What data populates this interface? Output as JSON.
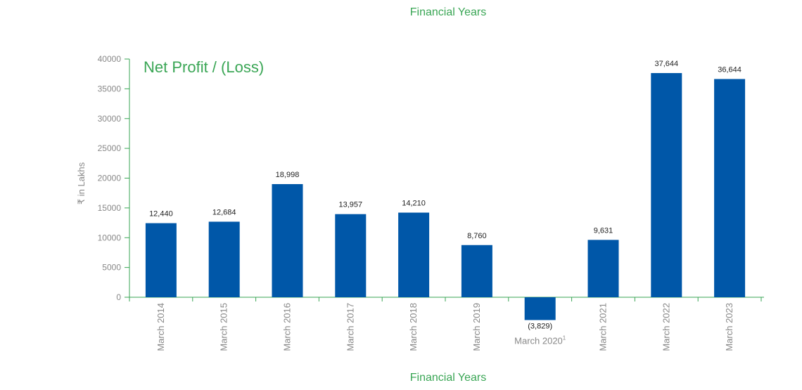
{
  "colors": {
    "bar": "#0057a8",
    "axis": "#3aa655",
    "accent_text": "#3aa655",
    "tick_text": "#888888",
    "label_text": "#222222"
  },
  "chart_data": {
    "type": "bar",
    "title": "Net Profit / (Loss)",
    "top_label": "Financial Years",
    "xlabel": "Financial Years",
    "ylabel": "₹ in Lakhs",
    "ylim": [
      -5000,
      40000
    ],
    "yticks": [
      0,
      5000,
      10000,
      15000,
      20000,
      25000,
      30000,
      35000,
      40000
    ],
    "categories": [
      "March 2014",
      "March 2015",
      "March 2016",
      "March 2017",
      "March 2018",
      "March 2019",
      "March 2020",
      "March 2021",
      "March 2022",
      "March 2023"
    ],
    "footnote_marks": [
      "",
      "",
      "",
      "",
      "",
      "",
      "1",
      "",
      "",
      ""
    ],
    "values": [
      12440,
      12684,
      18998,
      13957,
      14210,
      8760,
      -3829,
      9631,
      37644,
      36644
    ],
    "value_labels": [
      "12,440",
      "12,684",
      "18,998",
      "13,957",
      "14,210",
      "8,760",
      "(3,829)",
      "9,631",
      "37,644",
      "36,644"
    ],
    "grid": false,
    "legend": "none"
  }
}
